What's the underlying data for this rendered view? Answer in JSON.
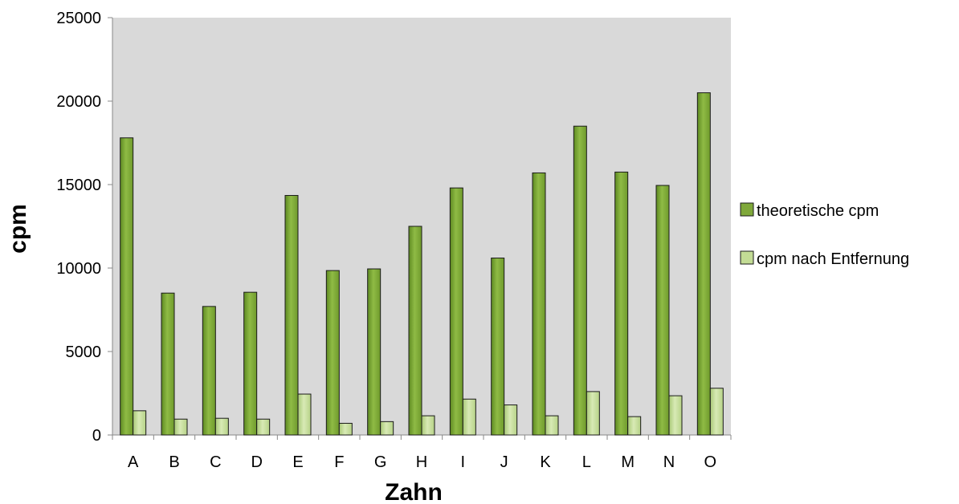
{
  "chart_data": {
    "type": "bar",
    "title": "",
    "xlabel": "Zahn",
    "ylabel": "cpm",
    "categories": [
      "A",
      "B",
      "C",
      "D",
      "E",
      "F",
      "G",
      "H",
      "I",
      "J",
      "K",
      "L",
      "M",
      "N",
      "O"
    ],
    "series": [
      {
        "name": "theoretische cpm",
        "color": "#7fa83a",
        "values": [
          17800,
          8500,
          7700,
          8550,
          14350,
          9850,
          9950,
          12500,
          14800,
          10600,
          15700,
          18500,
          15750,
          14950,
          20500
        ]
      },
      {
        "name": "cpm nach Entfernung",
        "color": "#c3dc95",
        "values": [
          1450,
          950,
          1000,
          950,
          2450,
          700,
          800,
          1150,
          2150,
          1800,
          1150,
          2600,
          1100,
          2350,
          2800
        ]
      }
    ],
    "ylim": [
      0,
      25000
    ],
    "yticks": [
      0,
      5000,
      10000,
      15000,
      20000,
      25000
    ],
    "grid": false,
    "plot_background": "#d9d9d9",
    "legend_position": "right"
  }
}
